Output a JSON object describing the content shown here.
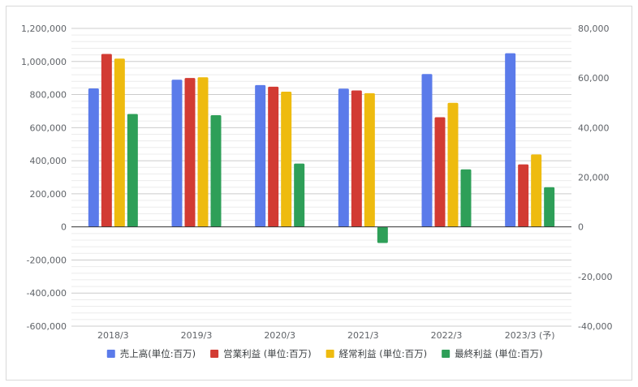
{
  "chart_data": {
    "type": "bar",
    "categories": [
      "2018/3",
      "2019/3",
      "2020/3",
      "2021/3",
      "2022/3",
      "2023/3 (予)"
    ],
    "series": [
      {
        "name": "売上高(単位:百万)",
        "axis": "left",
        "color": "#5b7bea",
        "values": [
          837000,
          890000,
          857000,
          836000,
          924000,
          1050000
        ]
      },
      {
        "name": "営業利益 (単位:百万)",
        "axis": "right",
        "color": "#d23b33",
        "values": [
          69700,
          60000,
          56500,
          55000,
          44200,
          25200
        ]
      },
      {
        "name": "経常利益 (単位:百万)",
        "axis": "right",
        "color": "#eebb0f",
        "values": [
          67800,
          60300,
          54500,
          53900,
          50000,
          29200
        ]
      },
      {
        "name": "最終利益 (単位:百万)",
        "axis": "right",
        "color": "#2e9f58",
        "values": [
          45500,
          45000,
          25500,
          -6500,
          23200,
          16000
        ]
      }
    ],
    "left_axis": {
      "ylim": [
        -600000,
        1200000
      ],
      "ticks": [
        1200000,
        1000000,
        800000,
        600000,
        400000,
        200000,
        0,
        -200000,
        -400000,
        -600000
      ],
      "tick_labels": [
        "1,200,000",
        "1,000,000",
        "800,000",
        "600,000",
        "400,000",
        "200,000",
        "0",
        "-200,000",
        "-400,000",
        "-600,000"
      ]
    },
    "right_axis": {
      "ylim": [
        -40000,
        80000
      ],
      "ticks": [
        80000,
        60000,
        40000,
        20000,
        0,
        -20000,
        -40000
      ],
      "tick_labels": [
        "80,000",
        "60,000",
        "40,000",
        "20,000",
        "0",
        "-20,000",
        "-40,000"
      ]
    },
    "grid": true,
    "legend_position": "bottom"
  }
}
